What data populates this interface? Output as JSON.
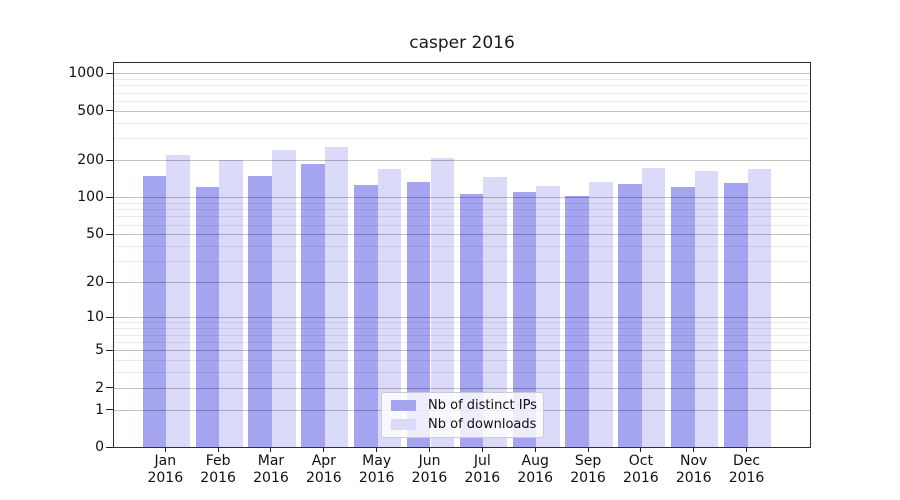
{
  "chart_data": {
    "type": "bar",
    "title": "casper 2016",
    "categories": [
      "Jan 2016",
      "Feb 2016",
      "Mar 2016",
      "Apr 2016",
      "May 2016",
      "Jun 2016",
      "Jul 2016",
      "Aug 2016",
      "Sep 2016",
      "Oct 2016",
      "Nov 2016",
      "Dec 2016"
    ],
    "series": [
      {
        "name": "Nb of distinct IPs",
        "color": "#a4a4f1",
        "values": [
          148,
          122,
          149,
          185,
          127,
          132,
          107,
          110,
          102,
          128,
          121,
          131
        ]
      },
      {
        "name": "Nb of downloads",
        "color": "#dbdbf9",
        "values": [
          220,
          200,
          240,
          255,
          170,
          210,
          146,
          124,
          134,
          174,
          163,
          171
        ]
      }
    ],
    "xlabel": "",
    "ylabel": "",
    "yscale": "log-like (log10 of 1+value), 0 at baseline",
    "yticks": [
      1000,
      500,
      200,
      100,
      50,
      20,
      10,
      5,
      2,
      1,
      0
    ],
    "yticks_minor": [
      3,
      4,
      6,
      7,
      8,
      9,
      30,
      40,
      60,
      70,
      80,
      90,
      300,
      400,
      600,
      700,
      800,
      900
    ],
    "ylim": [
      0,
      1100
    ],
    "grid": "horizontal major and minor lines",
    "legend_position": "lower center inside plot"
  },
  "colors": {
    "grid_major": "#c2c2c2",
    "grid_minor": "#ececec",
    "spine": "#2f2f2f",
    "text": "#111111",
    "legend_bg": "rgba(255,255,255,0.8)",
    "legend_border": "#cccccc"
  }
}
